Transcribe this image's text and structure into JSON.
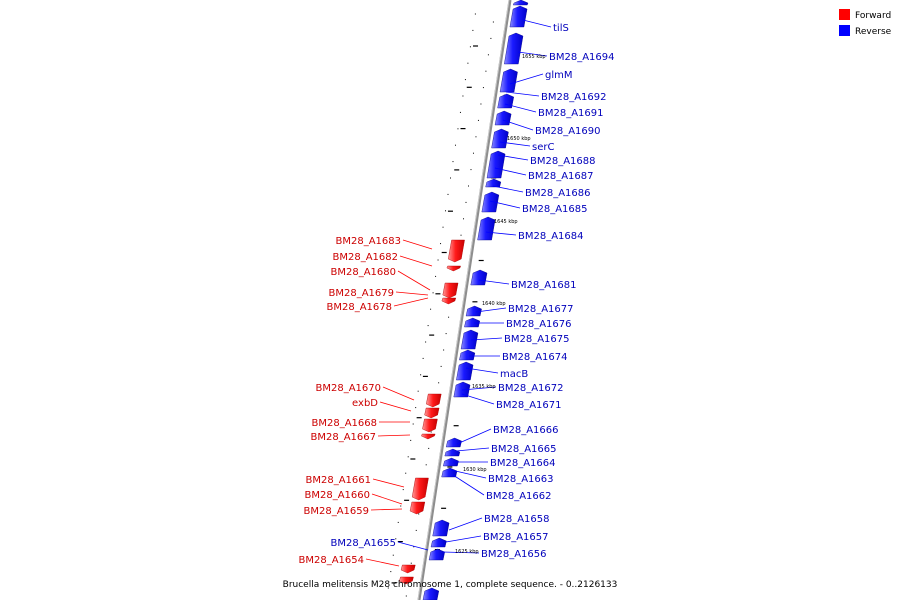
{
  "legend": [
    {
      "label": "Forward",
      "color": "#ff0000"
    },
    {
      "label": "Reverse",
      "color": "#0000ff"
    }
  ],
  "caption": "Brucella melitensis M28 chromosome 1, complete sequence. - 0..2126133",
  "colors": {
    "forward": "#ff0000",
    "reverse": "#0000ff",
    "backbone": "#9a9a9a",
    "forward_text": "#cc0000",
    "reverse_text": "#0000bb"
  },
  "position_marks": [
    "1655 kbp",
    "1650 kbp",
    "1645 kbp",
    "1640 kbp",
    "1635 kbp",
    "1630 kbp",
    "1625 kbp"
  ],
  "genes_reverse": [
    "tilS",
    "BM28_A1694",
    "glmM",
    "BM28_A1692",
    "BM28_A1691",
    "BM28_A1690",
    "serC",
    "BM28_A1688",
    "BM28_A1687",
    "BM28_A1686",
    "BM28_A1685",
    "BM28_A1684",
    "BM28_A1681",
    "BM28_A1677",
    "BM28_A1676",
    "BM28_A1675",
    "BM28_A1674",
    "macB",
    "BM28_A1672",
    "BM28_A1671",
    "BM28_A1666",
    "BM28_A1665",
    "BM28_A1664",
    "BM28_A1663",
    "BM28_A1662",
    "BM28_A1658",
    "BM28_A1657",
    "BM28_A1656",
    "BM28_A1655"
  ],
  "genes_forward": [
    "BM28_A1683",
    "BM28_A1682",
    "BM28_A1680",
    "BM28_A1679",
    "BM28_A1678",
    "BM28_A1670",
    "exbD",
    "BM28_A1668",
    "BM28_A1667",
    "BM28_A1661",
    "BM28_A1660",
    "BM28_A1659",
    "BM28_A1654"
  ]
}
